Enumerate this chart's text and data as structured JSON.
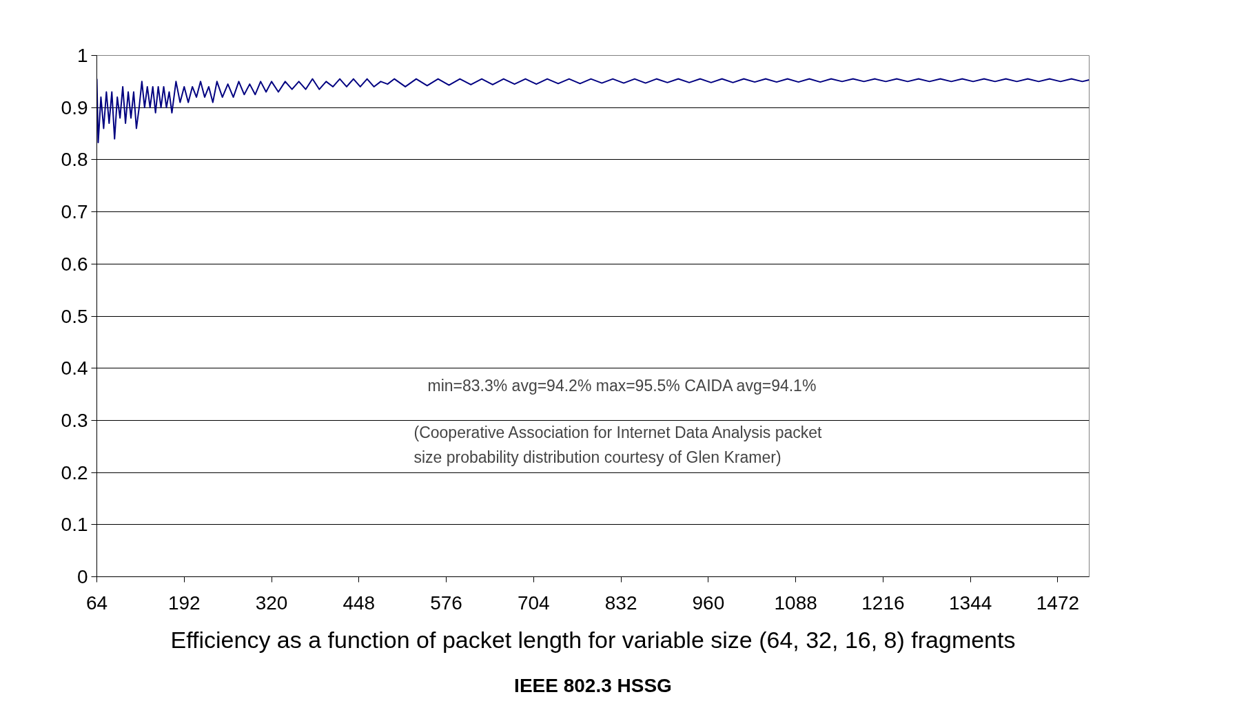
{
  "chart_data": {
    "type": "line",
    "title": "Efficiency as a function of packet length for variable size (64, 32, 16, 8) fragments",
    "annotations": [
      "min=83.3%  avg=94.2%  max=95.5%  CAIDA avg=94.1%",
      "(Cooperative Association for Internet Data Analysis packet size probability distribution courtesy of Glen Kramer)",
      "IEEE 802.3 HSSG"
    ],
    "x": [
      64,
      66,
      70,
      74,
      78,
      82,
      86,
      90,
      94,
      98,
      102,
      106,
      110,
      114,
      118,
      122,
      126,
      130,
      134,
      138,
      142,
      146,
      150,
      154,
      158,
      162,
      166,
      170,
      174,
      180,
      186,
      192,
      198,
      204,
      210,
      216,
      222,
      228,
      234,
      240,
      248,
      256,
      264,
      272,
      280,
      288,
      296,
      304,
      312,
      320,
      330,
      340,
      350,
      360,
      370,
      380,
      390,
      400,
      410,
      420,
      430,
      440,
      450,
      460,
      470,
      480,
      490,
      500,
      516,
      532,
      548,
      564,
      580,
      596,
      612,
      628,
      644,
      660,
      676,
      692,
      708,
      724,
      740,
      756,
      772,
      788,
      804,
      820,
      836,
      852,
      868,
      884,
      900,
      916,
      932,
      948,
      964,
      980,
      996,
      1012,
      1028,
      1044,
      1060,
      1076,
      1092,
      1108,
      1124,
      1140,
      1156,
      1172,
      1188,
      1204,
      1220,
      1236,
      1252,
      1268,
      1284,
      1300,
      1316,
      1332,
      1348,
      1364,
      1380,
      1396,
      1412,
      1428,
      1444,
      1460,
      1476,
      1492,
      1508,
      1518
    ],
    "series": [
      {
        "color": "#000080",
        "values": [
          0.955,
          0.833,
          0.92,
          0.86,
          0.93,
          0.87,
          0.93,
          0.84,
          0.92,
          0.88,
          0.94,
          0.87,
          0.93,
          0.88,
          0.93,
          0.86,
          0.9,
          0.95,
          0.9,
          0.94,
          0.9,
          0.94,
          0.89,
          0.94,
          0.9,
          0.94,
          0.9,
          0.93,
          0.89,
          0.95,
          0.91,
          0.94,
          0.91,
          0.94,
          0.92,
          0.95,
          0.92,
          0.94,
          0.91,
          0.95,
          0.92,
          0.945,
          0.92,
          0.95,
          0.925,
          0.945,
          0.925,
          0.95,
          0.93,
          0.95,
          0.93,
          0.95,
          0.935,
          0.95,
          0.935,
          0.955,
          0.935,
          0.95,
          0.94,
          0.955,
          0.94,
          0.955,
          0.94,
          0.955,
          0.94,
          0.95,
          0.945,
          0.955,
          0.94,
          0.955,
          0.942,
          0.955,
          0.943,
          0.955,
          0.944,
          0.955,
          0.944,
          0.955,
          0.945,
          0.955,
          0.945,
          0.955,
          0.946,
          0.955,
          0.946,
          0.955,
          0.947,
          0.955,
          0.947,
          0.955,
          0.947,
          0.955,
          0.948,
          0.955,
          0.948,
          0.955,
          0.948,
          0.955,
          0.948,
          0.955,
          0.949,
          0.955,
          0.949,
          0.955,
          0.949,
          0.955,
          0.949,
          0.955,
          0.95,
          0.955,
          0.95,
          0.955,
          0.95,
          0.955,
          0.95,
          0.955,
          0.95,
          0.955,
          0.95,
          0.955,
          0.95,
          0.955,
          0.95,
          0.955,
          0.95,
          0.955,
          0.95,
          0.955,
          0.95,
          0.955,
          0.95,
          0.953
        ]
      }
    ],
    "xlim": [
      64,
      1518
    ],
    "ylim": [
      0,
      1
    ],
    "xticks": [
      64,
      192,
      320,
      448,
      576,
      704,
      832,
      960,
      1088,
      1216,
      1344,
      1472
    ],
    "yticks": [
      0,
      0.1,
      0.2,
      0.3,
      0.4,
      0.5,
      0.6,
      0.7,
      0.8,
      0.9,
      1
    ],
    "grid": "y",
    "marker": "none",
    "line_style": "solid"
  }
}
